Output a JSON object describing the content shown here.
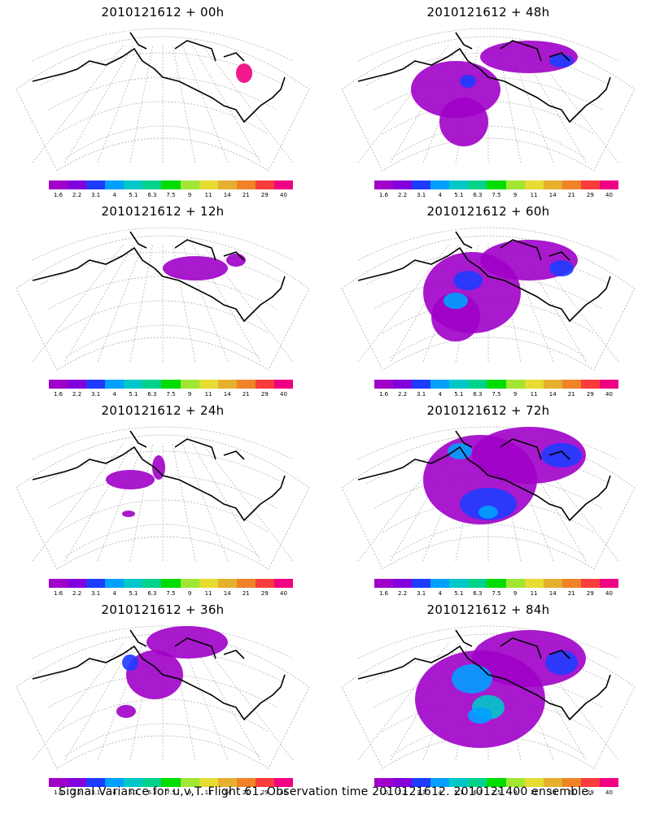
{
  "panels": [
    {
      "title": "2010121612 + 00h"
    },
    {
      "title": "2010121612 + 48h"
    },
    {
      "title": "2010121612 + 12h"
    },
    {
      "title": "2010121612 + 60h"
    },
    {
      "title": "2010121612 + 24h"
    },
    {
      "title": "2010121612 + 72h"
    },
    {
      "title": "2010121612 + 36h"
    },
    {
      "title": "2010121612 + 84h"
    }
  ],
  "colorbar": {
    "labels": [
      "1.6",
      "2.2",
      "3.1",
      "4",
      "5.1",
      "6.3",
      "7.5",
      "9",
      "11",
      "14",
      "21",
      "29",
      "40"
    ],
    "colors": [
      "#a000c8",
      "#8200dc",
      "#1e3cff",
      "#00a0ff",
      "#00c8c8",
      "#00d28c",
      "#00dc00",
      "#a0e632",
      "#e6dc32",
      "#e6af2d",
      "#f08228",
      "#fa3c3c",
      "#f00082"
    ]
  },
  "caption": "Signal Variance for u,v,T. Flight 61. Observation time 2010121612. 2010121400 ensemble."
}
